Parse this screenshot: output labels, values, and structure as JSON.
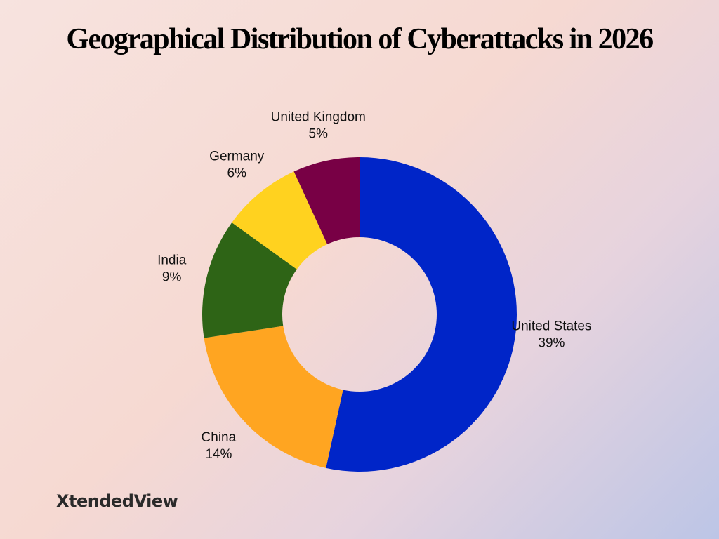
{
  "chart_data": {
    "type": "donut",
    "title": "Geographical Distribution of Cyberattacks in 2026",
    "categories": [
      "United States",
      "China",
      "India",
      "Germany",
      "United Kingdom"
    ],
    "values": [
      39,
      14,
      9,
      6,
      5
    ],
    "value_labels": [
      "39%",
      "14%",
      "9%",
      "6%",
      "5%"
    ],
    "colors": [
      "#0025c8",
      "#ffa521",
      "#2e6416",
      "#ffd21f",
      "#780045"
    ]
  },
  "logo": "XtendedView"
}
